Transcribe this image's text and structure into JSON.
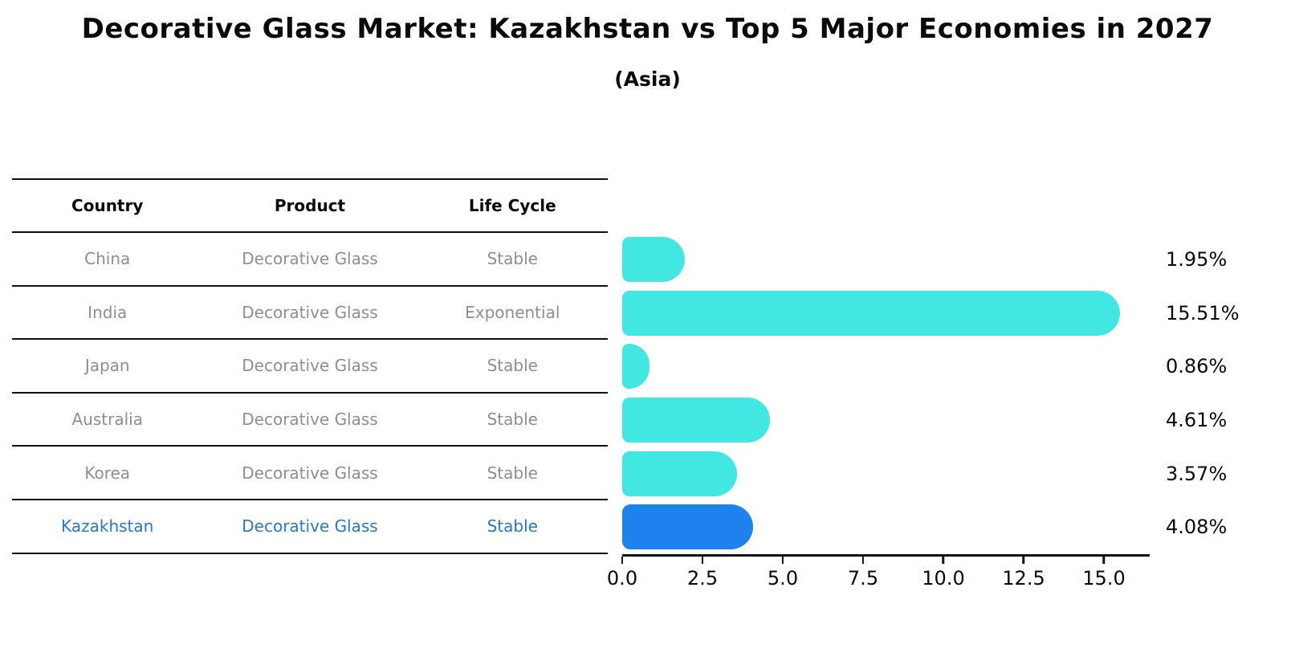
{
  "title": "Decorative Glass Market: Kazakhstan vs Top 5 Major Economies in 2027",
  "subtitle": "(Asia)",
  "table": {
    "headers": [
      "Country",
      "Product",
      "Life Cycle"
    ],
    "rows": [
      {
        "country": "China",
        "product": "Decorative Glass",
        "life_cycle": "Stable",
        "highlighted": false
      },
      {
        "country": "India",
        "product": "Decorative Glass",
        "life_cycle": "Exponential",
        "highlighted": false
      },
      {
        "country": "Japan",
        "product": "Decorative Glass",
        "life_cycle": "Stable",
        "highlighted": false
      },
      {
        "country": "Australia",
        "product": "Decorative Glass",
        "life_cycle": "Stable",
        "highlighted": false
      },
      {
        "country": "Korea",
        "product": "Decorative Glass",
        "life_cycle": "Stable",
        "highlighted": false
      },
      {
        "country": "Kazakhstan",
        "product": "Decorative Glass",
        "life_cycle": "Stable",
        "highlighted": true
      }
    ]
  },
  "chart_data": {
    "type": "bar",
    "orientation": "horizontal",
    "categories": [
      "China",
      "India",
      "Japan",
      "Australia",
      "Korea",
      "Kazakhstan"
    ],
    "values": [
      1.95,
      15.51,
      0.86,
      4.61,
      3.57,
      4.08
    ],
    "labels": [
      "1.95%",
      "15.51%",
      "0.86%",
      "4.61%",
      "3.57%",
      "4.08%"
    ],
    "xticks": [
      "0.0",
      "2.5",
      "5.0",
      "7.5",
      "10.0",
      "12.5",
      "15.0"
    ],
    "tick_values": [
      0,
      2.5,
      5,
      7.5,
      10,
      12.5,
      15
    ],
    "xlim": [
      0,
      16
    ],
    "grid": false,
    "legend": "none",
    "bar_color": "#41E7E0",
    "highlight_color": "#1E82EE",
    "highlight_index": 5
  },
  "colors": {
    "highlight_text": "#2878C8",
    "table_text": "#8E8E8E",
    "axis": "#111111"
  }
}
